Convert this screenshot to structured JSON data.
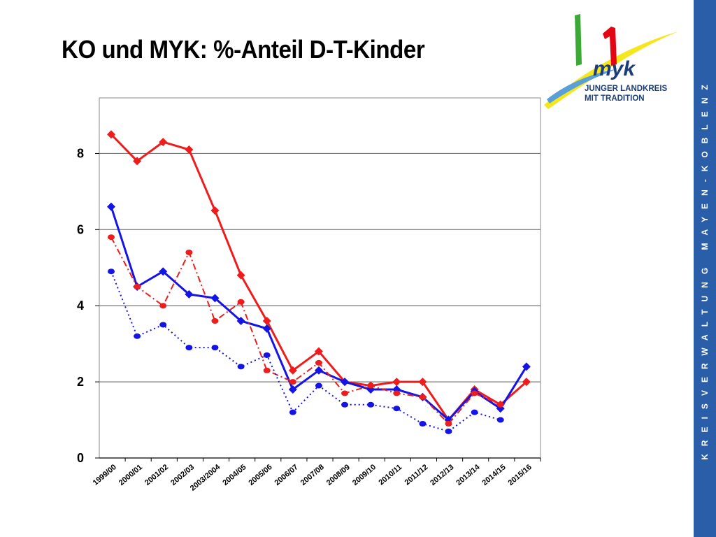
{
  "slide": {
    "title": "KO und MYK: %-Anteil D-T-Kinder",
    "sidebar_text": "KREISVERWALTUNG MAYEN-KOBLENZ"
  },
  "logo": {
    "line1": "JUNGER LANDKREIS",
    "line2": "MIT TRADITION",
    "wordmark": "myk",
    "colors": {
      "green": "#3aaa35",
      "red": "#e30613",
      "yellow": "#f5e61e",
      "blue": "#5aa0d8",
      "navy": "#1d3d7a"
    }
  },
  "chart_data": {
    "type": "line",
    "title": "",
    "xlabel": "",
    "ylabel": "",
    "ylim": [
      0,
      9
    ],
    "yticks": [
      0,
      2,
      4,
      6,
      8
    ],
    "grid": "horizontal",
    "legend": "none",
    "x_labels": [
      "1999/00",
      "2000/01",
      "2001/02",
      "2002/03",
      "2003/2004",
      "2004/05",
      "2005/06",
      "2006/07",
      "2007/08",
      "2008/09",
      "2009/10",
      "2010/11",
      "2011/12",
      "2012/13",
      "2013/14",
      "2014/15",
      "2015/16"
    ],
    "series": [
      {
        "color": "#ee1c1c",
        "style": "solid",
        "marker": "diamond",
        "values": [
          8.5,
          7.8,
          8.3,
          8.1,
          6.5,
          4.8,
          3.6,
          2.3,
          2.8,
          2.0,
          1.9,
          2.0,
          2.0,
          1.0,
          1.8,
          1.4,
          2.0
        ]
      },
      {
        "color": "#1414e6",
        "style": "solid",
        "marker": "diamond",
        "values": [
          6.6,
          4.5,
          4.9,
          4.3,
          4.2,
          3.6,
          3.4,
          1.8,
          2.3,
          2.0,
          1.8,
          1.8,
          1.6,
          1.0,
          1.75,
          1.3,
          2.4
        ]
      },
      {
        "color": "#ee1c1c",
        "style": "dashdot",
        "marker": "circle",
        "values": [
          5.8,
          4.5,
          4.0,
          5.4,
          3.6,
          4.1,
          2.3,
          2.0,
          2.5,
          1.7,
          1.9,
          1.7,
          1.6,
          0.9,
          1.7,
          1.4,
          null
        ]
      },
      {
        "color": "#1414e6",
        "style": "dotted",
        "marker": "circle",
        "values": [
          4.9,
          3.2,
          3.5,
          2.9,
          2.9,
          2.4,
          2.7,
          1.2,
          1.9,
          1.4,
          1.4,
          1.3,
          0.9,
          0.7,
          1.2,
          1.0,
          null
        ]
      }
    ]
  }
}
